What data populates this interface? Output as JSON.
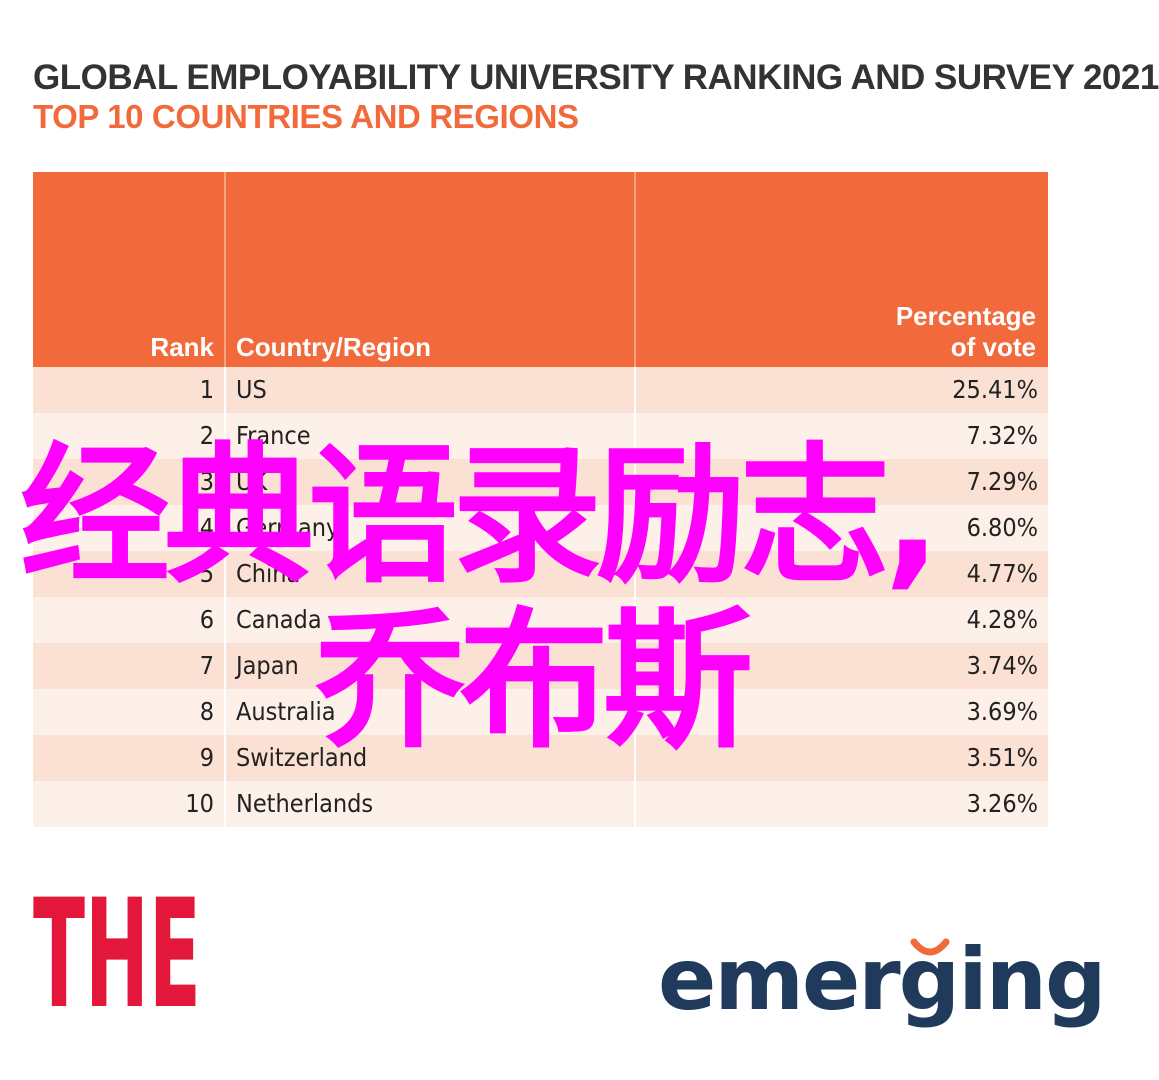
{
  "title": "GLOBAL EMPLOYABILITY UNIVERSITY RANKING AND SURVEY 2021",
  "subtitle": "TOP 10 COUNTRIES AND REGIONS",
  "colors": {
    "header": "#f26a3b",
    "row_odd": "#fbe1d3",
    "row_even": "#fdf0e8",
    "overlay": "#ff00ff",
    "the_logo": "#e2173a",
    "emerging_logo": "#1f3a5a",
    "emerging_arc": "#f26a3b"
  },
  "chart_data": {
    "type": "table",
    "columns": [
      "Rank",
      "Country/Region",
      "Percentage of vote"
    ],
    "header_pct_lines": [
      "Percentage",
      "of vote"
    ],
    "rows": [
      {
        "rank": "1",
        "country": "US",
        "pct": "25.41%"
      },
      {
        "rank": "2",
        "country": "France",
        "pct": "7.32%"
      },
      {
        "rank": "3",
        "country": "UK",
        "pct": "7.29%"
      },
      {
        "rank": "4",
        "country": "Germany",
        "pct": "6.80%"
      },
      {
        "rank": "5",
        "country": "China",
        "pct": "4.77%"
      },
      {
        "rank": "6",
        "country": "Canada",
        "pct": "4.28%"
      },
      {
        "rank": "7",
        "country": "Japan",
        "pct": "3.74%"
      },
      {
        "rank": "8",
        "country": "Australia",
        "pct": "3.69%"
      },
      {
        "rank": "9",
        "country": "Switzerland",
        "pct": "3.51%"
      },
      {
        "rank": "10",
        "country": "Netherlands",
        "pct": "3.26%"
      }
    ]
  },
  "overlay": {
    "line1": "经典语录励志,",
    "line2": "乔布斯"
  },
  "logos": {
    "the": "THE",
    "emerging": "emerging"
  }
}
